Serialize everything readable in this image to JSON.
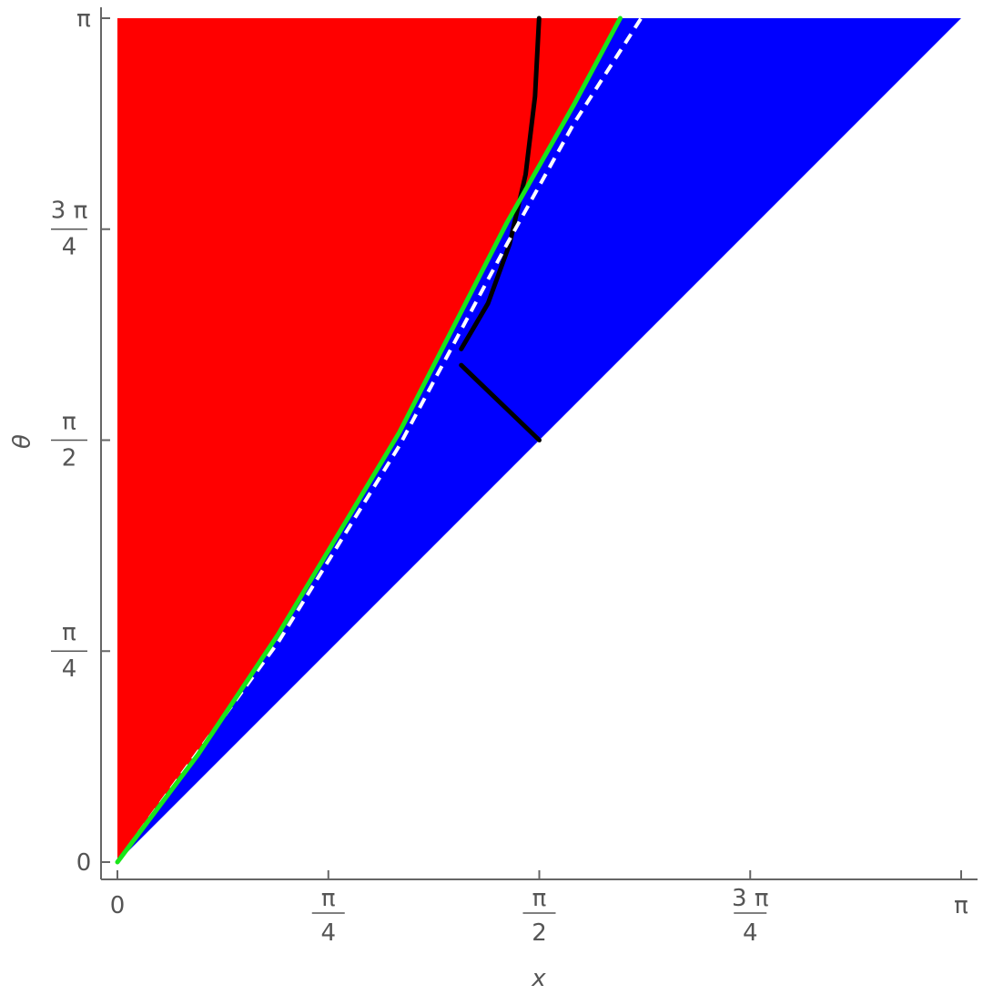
{
  "chart_data": {
    "type": "area",
    "title": "",
    "xlabel": "x",
    "ylabel": "θ",
    "xlim": [
      0,
      3.14159
    ],
    "ylim": [
      0,
      3.14159
    ],
    "x_ticks": [
      {
        "value": 0,
        "num": "0",
        "den": ""
      },
      {
        "value": 0.7854,
        "num": "π",
        "den": "4"
      },
      {
        "value": 1.5708,
        "num": "π",
        "den": "2"
      },
      {
        "value": 2.3562,
        "num": "3 π",
        "den": "4"
      },
      {
        "value": 3.14159,
        "num": "π",
        "den": ""
      }
    ],
    "y_ticks": [
      {
        "value": 0,
        "num": "0",
        "den": ""
      },
      {
        "value": 0.7854,
        "num": "π",
        "den": "4"
      },
      {
        "value": 1.5708,
        "num": "π",
        "den": "2"
      },
      {
        "value": 2.3562,
        "num": "3 π",
        "den": "4"
      },
      {
        "value": 3.14159,
        "num": "π",
        "den": ""
      }
    ],
    "regions": [
      {
        "color": "#ff0000",
        "points": [
          [
            0,
            0
          ],
          [
            0,
            3.14159
          ],
          [
            1.872,
            3.14159
          ],
          [
            1.45,
            2.38
          ],
          [
            1.05,
            1.6
          ],
          [
            0.6,
            0.85
          ],
          [
            0.3,
            0.4
          ],
          [
            0,
            0
          ]
        ]
      },
      {
        "color": "#0000ff",
        "points": [
          [
            0,
            0
          ],
          [
            0.3,
            0.4
          ],
          [
            0.6,
            0.85
          ],
          [
            1.05,
            1.6
          ],
          [
            1.45,
            2.38
          ],
          [
            1.872,
            3.14159
          ],
          [
            3.14159,
            3.14159
          ],
          [
            0,
            0
          ]
        ]
      }
    ],
    "curves": [
      {
        "color": "#000000",
        "style": "solid",
        "points": [
          [
            1.28,
            1.91
          ],
          [
            1.38,
            2.08
          ],
          [
            1.46,
            2.3
          ],
          [
            1.52,
            2.56
          ],
          [
            1.555,
            2.85
          ],
          [
            1.57,
            3.14159
          ]
        ]
      },
      {
        "color": "#000000",
        "style": "solid",
        "points": [
          [
            1.28,
            1.85
          ],
          [
            1.5708,
            1.5708
          ]
        ]
      },
      {
        "color": "#ffffff",
        "style": "dashed",
        "points": [
          [
            0.0,
            0.0
          ],
          [
            0.6,
            0.82
          ],
          [
            1.05,
            1.55
          ],
          [
            1.45,
            2.3
          ],
          [
            1.7,
            2.75
          ],
          [
            1.95,
            3.14159
          ]
        ]
      },
      {
        "color": "#19e619",
        "style": "solid",
        "points": [
          [
            0.0,
            0.0
          ],
          [
            0.3,
            0.4
          ],
          [
            0.6,
            0.85
          ],
          [
            1.05,
            1.6
          ],
          [
            1.45,
            2.38
          ],
          [
            1.7,
            2.82
          ],
          [
            1.872,
            3.14159
          ]
        ]
      }
    ]
  }
}
